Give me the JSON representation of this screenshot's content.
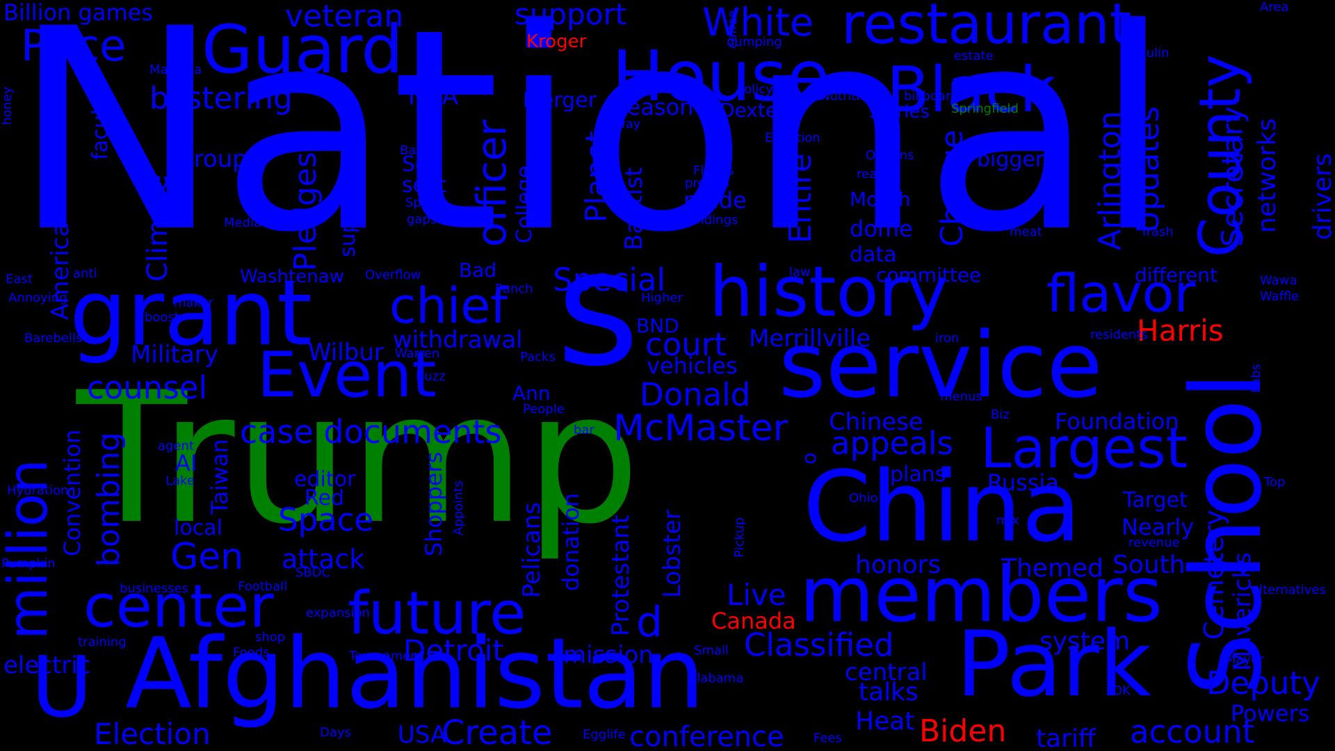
{
  "colors": {
    "background": "#000000",
    "blue": "#0000ff",
    "green": "#008000",
    "red": "#ff0000"
  },
  "words": [
    {
      "text": "National",
      "color": "blue"
    },
    {
      "text": "Trump",
      "color": "green"
    },
    {
      "text": "s",
      "color": "blue"
    },
    {
      "text": "Afghanistan",
      "color": "blue"
    },
    {
      "text": "School",
      "color": "blue"
    },
    {
      "text": "China",
      "color": "blue"
    },
    {
      "text": "service",
      "color": "blue"
    },
    {
      "text": "Park",
      "color": "blue"
    },
    {
      "text": "members",
      "color": "blue"
    },
    {
      "text": "grant",
      "color": "blue"
    },
    {
      "text": "history",
      "color": "blue"
    },
    {
      "text": "House",
      "color": "blue"
    },
    {
      "text": "Guard",
      "color": "blue"
    },
    {
      "text": "Black",
      "color": "blue"
    },
    {
      "text": "million",
      "color": "blue"
    },
    {
      "text": "U",
      "color": "blue"
    },
    {
      "text": "Event",
      "color": "blue"
    },
    {
      "text": "future",
      "color": "blue"
    },
    {
      "text": "center",
      "color": "blue"
    },
    {
      "text": "Largest",
      "color": "blue"
    },
    {
      "text": "restaurant",
      "color": "blue"
    },
    {
      "text": "County",
      "color": "blue"
    },
    {
      "text": "flavor",
      "color": "blue"
    },
    {
      "text": "officer",
      "color": "blue"
    },
    {
      "text": "chief",
      "color": "blue"
    },
    {
      "text": "White",
      "color": "blue"
    },
    {
      "text": "Price",
      "color": "blue"
    },
    {
      "text": "McMaster",
      "color": "blue"
    },
    {
      "text": "Create",
      "color": "blue"
    },
    {
      "text": "conference",
      "color": "blue"
    },
    {
      "text": "account",
      "color": "blue"
    },
    {
      "text": "Election",
      "color": "blue"
    },
    {
      "text": "Deputy",
      "color": "blue"
    },
    {
      "text": "Detroit",
      "color": "blue"
    },
    {
      "text": "Classified",
      "color": "blue"
    },
    {
      "text": "case documents",
      "color": "blue"
    },
    {
      "text": "appeals",
      "color": "blue"
    },
    {
      "text": "d",
      "color": "blue"
    },
    {
      "text": "Donald",
      "color": "blue"
    },
    {
      "text": "court",
      "color": "blue"
    },
    {
      "text": "Special",
      "color": "blue"
    },
    {
      "text": "counsel",
      "color": "blue"
    },
    {
      "text": "Gen",
      "color": "blue"
    },
    {
      "text": "Space",
      "color": "blue"
    },
    {
      "text": "attack",
      "color": "blue"
    },
    {
      "text": "Live",
      "color": "blue"
    },
    {
      "text": "honors",
      "color": "blue"
    },
    {
      "text": "Themed",
      "color": "blue"
    },
    {
      "text": "South",
      "color": "blue"
    },
    {
      "text": "system",
      "color": "blue"
    },
    {
      "text": "talks",
      "color": "blue"
    },
    {
      "text": "Heat",
      "color": "blue"
    },
    {
      "text": "tariff",
      "color": "blue"
    },
    {
      "text": "central",
      "color": "blue"
    },
    {
      "text": "Powers",
      "color": "blue"
    },
    {
      "text": "USA",
      "color": "blue"
    },
    {
      "text": "mission",
      "color": "blue"
    },
    {
      "text": "electric",
      "color": "blue"
    },
    {
      "text": "blistering",
      "color": "blue"
    },
    {
      "text": "veteran",
      "color": "blue"
    },
    {
      "text": "support",
      "color": "blue"
    },
    {
      "text": "Billion games",
      "color": "blue"
    },
    {
      "text": "Military",
      "color": "blue"
    },
    {
      "text": "Wilbur",
      "color": "blue"
    },
    {
      "text": "withdrawal",
      "color": "blue"
    },
    {
      "text": "Merrillville",
      "color": "blue"
    },
    {
      "text": "Chinese",
      "color": "blue"
    },
    {
      "text": "Foundation",
      "color": "blue"
    },
    {
      "text": "Russia",
      "color": "blue"
    },
    {
      "text": "plans",
      "color": "blue"
    },
    {
      "text": "Target",
      "color": "blue"
    },
    {
      "text": "Nearly",
      "color": "blue"
    },
    {
      "text": "vehicles",
      "color": "blue"
    },
    {
      "text": "BND",
      "color": "blue"
    },
    {
      "text": "season",
      "color": "blue"
    },
    {
      "text": "Merger",
      "color": "blue"
    },
    {
      "text": "Dexter",
      "color": "blue"
    },
    {
      "text": "stories",
      "color": "blue"
    },
    {
      "text": "NBA",
      "color": "blue"
    },
    {
      "text": "group",
      "color": "blue"
    },
    {
      "text": "made",
      "color": "blue"
    },
    {
      "text": "Month",
      "color": "blue"
    },
    {
      "text": "dome",
      "color": "blue"
    },
    {
      "text": "data",
      "color": "blue"
    },
    {
      "text": "committee",
      "color": "blue"
    },
    {
      "text": "different",
      "color": "blue"
    },
    {
      "text": "bigger",
      "color": "blue"
    },
    {
      "text": "Sea",
      "color": "blue"
    },
    {
      "text": "seat",
      "color": "blue"
    },
    {
      "text": "Bad",
      "color": "blue"
    },
    {
      "text": "Washtenaw",
      "color": "blue"
    },
    {
      "text": "editor",
      "color": "blue"
    },
    {
      "text": "Red",
      "color": "blue"
    },
    {
      "text": "local",
      "color": "blue"
    },
    {
      "text": "AI",
      "color": "blue"
    },
    {
      "text": "Ann",
      "color": "blue"
    },
    {
      "text": "Overflow",
      "color": "blue"
    },
    {
      "text": "Harris",
      "color": "red"
    },
    {
      "text": "Biden",
      "color": "red"
    },
    {
      "text": "Canada",
      "color": "red"
    },
    {
      "text": "Kroger",
      "color": "red"
    },
    {
      "text": "Springfield",
      "color": "green"
    },
    {
      "text": "Climate",
      "color": "blue"
    },
    {
      "text": "Pledges",
      "color": "blue"
    },
    {
      "text": "supplies",
      "color": "blue"
    },
    {
      "text": "College",
      "color": "blue"
    },
    {
      "text": "Planet",
      "color": "blue"
    },
    {
      "text": "Baptist",
      "color": "blue"
    },
    {
      "text": "Entire",
      "color": "blue"
    },
    {
      "text": "Change",
      "color": "blue"
    },
    {
      "text": "Arlington",
      "color": "blue"
    },
    {
      "text": "Updates",
      "color": "blue"
    },
    {
      "text": "Secretary",
      "color": "blue"
    },
    {
      "text": "networks",
      "color": "blue"
    },
    {
      "text": "drivers",
      "color": "blue"
    },
    {
      "text": "America",
      "color": "blue"
    },
    {
      "text": "faculty",
      "color": "blue"
    },
    {
      "text": "bombing",
      "color": "blue"
    },
    {
      "text": "Convention",
      "color": "blue"
    },
    {
      "text": "Taiwan",
      "color": "blue"
    },
    {
      "text": "Shoppers",
      "color": "blue"
    },
    {
      "text": "Pelicans",
      "color": "blue"
    },
    {
      "text": "donation",
      "color": "blue"
    },
    {
      "text": "Protestant",
      "color": "blue"
    },
    {
      "text": "Lobster",
      "color": "blue"
    },
    {
      "text": "Cemetery",
      "color": "blue"
    },
    {
      "text": "Mavericks",
      "color": "blue"
    },
    {
      "text": "Appoints",
      "color": "blue"
    },
    {
      "text": "Pickup",
      "color": "blue"
    },
    {
      "text": "Labs",
      "color": "blue"
    },
    {
      "text": "honey",
      "color": "blue"
    },
    {
      "text": "o",
      "color": "blue"
    },
    {
      "text": "coffee",
      "color": "blue"
    },
    {
      "text": "Policy",
      "color": "blue"
    },
    {
      "text": "Nutritional",
      "color": "blue"
    },
    {
      "text": "billboards",
      "color": "blue"
    },
    {
      "text": "dumping",
      "color": "blue"
    },
    {
      "text": "Machina",
      "color": "blue"
    },
    {
      "text": "estate",
      "color": "blue"
    },
    {
      "text": "Inulin",
      "color": "blue"
    },
    {
      "text": "Area",
      "color": "blue"
    },
    {
      "text": "way",
      "color": "blue"
    },
    {
      "text": "Bakery",
      "color": "blue"
    },
    {
      "text": "Flaggs",
      "color": "blue"
    },
    {
      "text": "protein",
      "color": "blue"
    },
    {
      "text": "Orleans",
      "color": "blue"
    },
    {
      "text": "real",
      "color": "blue"
    },
    {
      "text": "Spun",
      "color": "blue"
    },
    {
      "text": "gaps",
      "color": "blue"
    },
    {
      "text": "findings",
      "color": "blue"
    },
    {
      "text": "Media",
      "color": "blue"
    },
    {
      "text": "meat",
      "color": "blue"
    },
    {
      "text": "Trash",
      "color": "blue"
    },
    {
      "text": "anti",
      "color": "blue"
    },
    {
      "text": "East",
      "color": "blue"
    },
    {
      "text": "Annoying",
      "color": "blue"
    },
    {
      "text": "maker",
      "color": "blue"
    },
    {
      "text": "Punch",
      "color": "blue"
    },
    {
      "text": "Higher",
      "color": "blue"
    },
    {
      "text": "law",
      "color": "blue"
    },
    {
      "text": "Wawa",
      "color": "blue"
    },
    {
      "text": "Waffle",
      "color": "blue"
    },
    {
      "text": "boost",
      "color": "blue"
    },
    {
      "text": "Barebells",
      "color": "blue"
    },
    {
      "text": "Warren",
      "color": "blue"
    },
    {
      "text": "Packs",
      "color": "blue"
    },
    {
      "text": "Buzz",
      "color": "blue"
    },
    {
      "text": "iron",
      "color": "blue"
    },
    {
      "text": "residents",
      "color": "blue"
    },
    {
      "text": "menus",
      "color": "blue"
    },
    {
      "text": "Biz",
      "color": "blue"
    },
    {
      "text": "People",
      "color": "blue"
    },
    {
      "text": "bar",
      "color": "blue"
    },
    {
      "text": "agent",
      "color": "blue"
    },
    {
      "text": "Lake",
      "color": "blue"
    },
    {
      "text": "Ohio",
      "color": "blue"
    },
    {
      "text": "Top",
      "color": "blue"
    },
    {
      "text": "Hydration",
      "color": "blue"
    },
    {
      "text": "mix",
      "color": "blue"
    },
    {
      "text": "revenue",
      "color": "blue"
    },
    {
      "text": "Pumpkin",
      "color": "blue"
    },
    {
      "text": "SBDC",
      "color": "blue"
    },
    {
      "text": "businesses",
      "color": "blue"
    },
    {
      "text": "Football",
      "color": "blue"
    },
    {
      "text": "alternatives",
      "color": "blue"
    },
    {
      "text": "expansion",
      "color": "blue"
    },
    {
      "text": "shop",
      "color": "blue"
    },
    {
      "text": "training",
      "color": "blue"
    },
    {
      "text": "Foods",
      "color": "blue"
    },
    {
      "text": "Tournament",
      "color": "blue"
    },
    {
      "text": "Small",
      "color": "blue"
    },
    {
      "text": "Mayor",
      "color": "blue"
    },
    {
      "text": "Alabama",
      "color": "blue"
    },
    {
      "text": "OK",
      "color": "blue"
    },
    {
      "text": "Days",
      "color": "blue"
    },
    {
      "text": "Egglife",
      "color": "blue"
    },
    {
      "text": "Fees",
      "color": "blue"
    },
    {
      "text": "Equation",
      "color": "blue"
    }
  ]
}
